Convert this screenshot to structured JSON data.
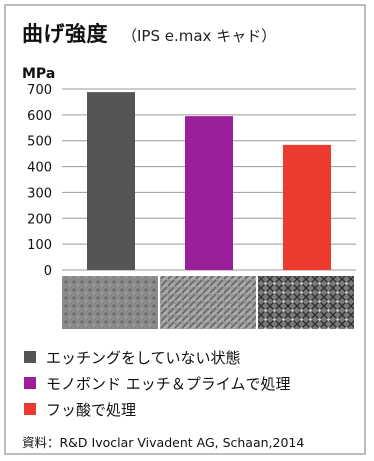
{
  "header": {
    "title": "曲げ強度",
    "subtitle": "（IPS e.max キャド）",
    "unit": "MPa"
  },
  "chart_data": {
    "type": "bar",
    "categories": [
      "エッチングをしていない状態",
      "モノボンド エッチ＆プライムで処理",
      "フッ酸で処理"
    ],
    "values": [
      688,
      595,
      484
    ],
    "colors": [
      "#555555",
      "#9b1f9b",
      "#ec3b2e"
    ],
    "ylim": [
      0,
      700
    ],
    "yticks": [
      "0",
      "100",
      "200",
      "300",
      "400",
      "500",
      "600",
      "700"
    ],
    "ylabel": "MPa",
    "grid": true,
    "legend_position": "bottom"
  },
  "legend": [
    {
      "label": "エッチングをしていない状態",
      "color": "#555555"
    },
    {
      "label": "モノボンド エッチ＆プライムで処理",
      "color": "#9b1f9b"
    },
    {
      "label": "フッ酸で処理",
      "color": "#ec3b2e"
    }
  ],
  "images": [
    {
      "icon": "surface-micrograph-untreated"
    },
    {
      "icon": "surface-micrograph-monobond"
    },
    {
      "icon": "surface-micrograph-hf"
    }
  ],
  "source": "資料：R&D Ivoclar Vivadent AG, Schaan,2014"
}
